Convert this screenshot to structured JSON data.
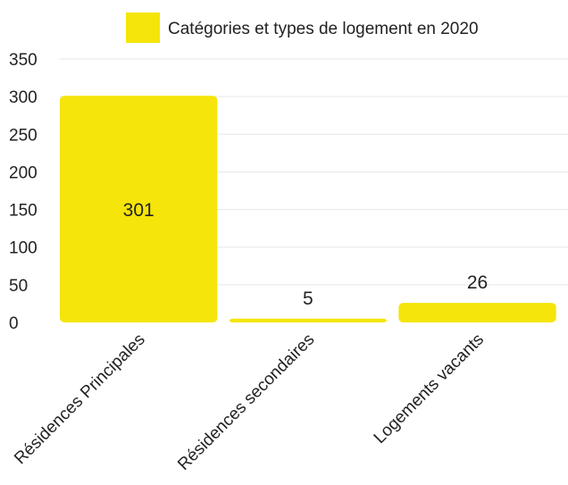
{
  "chart_data": {
    "type": "bar",
    "categories": [
      "Résidences Principales",
      "Résidences secondaires",
      "Logements vacants"
    ],
    "series": [
      {
        "name": "Catégories et types de logement en 2020",
        "values": [
          301,
          5,
          26
        ],
        "color": "#f5e50a"
      }
    ],
    "data_labels": [
      "301",
      "5",
      "26"
    ],
    "ylim": [
      0,
      350
    ],
    "yticks": [
      "0",
      "50",
      "100",
      "150",
      "200",
      "250",
      "300",
      "350"
    ],
    "grid": true,
    "legend_position": "top-center"
  }
}
